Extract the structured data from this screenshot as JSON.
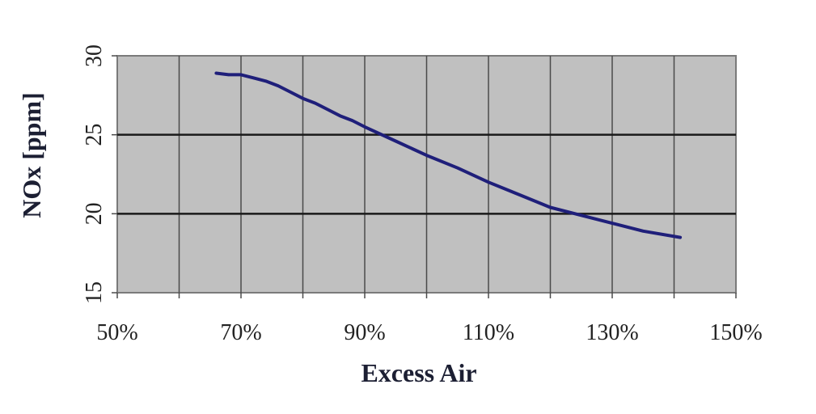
{
  "chart_data": {
    "type": "line",
    "title": "",
    "xlabel": "Excess Air",
    "ylabel": "NOx [ppm]",
    "xlim": [
      50,
      150
    ],
    "ylim": [
      15,
      30
    ],
    "x_ticks": [
      50,
      70,
      90,
      110,
      130,
      150
    ],
    "x_tick_labels": [
      "50%",
      "70%",
      "90%",
      "110%",
      "130%",
      "150%"
    ],
    "y_ticks": [
      15,
      20,
      25,
      30
    ],
    "y_tick_labels": [
      "15",
      "20",
      "25",
      "30"
    ],
    "grid": true,
    "plot_background": "#c0c0c0",
    "series": [
      {
        "color": "#1f1f7a",
        "x": [
          66,
          68,
          70,
          72,
          74,
          76,
          78,
          80,
          82,
          84,
          86,
          88,
          90,
          95,
          100,
          105,
          110,
          115,
          120,
          125,
          130,
          135,
          141
        ],
        "y": [
          28.9,
          28.8,
          28.8,
          28.6,
          28.4,
          28.1,
          27.7,
          27.3,
          27.0,
          26.6,
          26.2,
          25.9,
          25.5,
          24.6,
          23.7,
          22.9,
          22.0,
          21.2,
          20.4,
          19.9,
          19.4,
          18.9,
          18.5
        ]
      }
    ]
  }
}
